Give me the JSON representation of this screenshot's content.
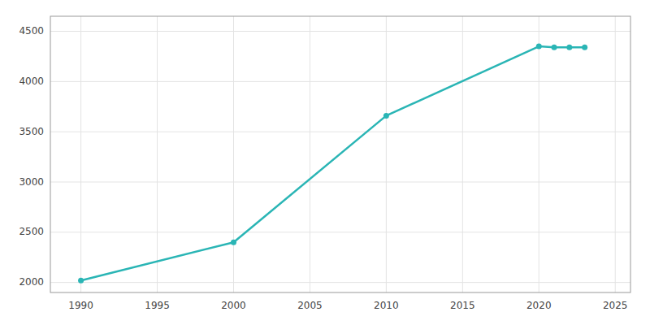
{
  "chart_data": {
    "type": "line",
    "x": [
      1990,
      2000,
      2010,
      2020,
      2021,
      2022,
      2023
    ],
    "values": [
      2020,
      2400,
      3660,
      4350,
      4340,
      4340,
      4340
    ],
    "color": "#2ab5b5",
    "marker": "circle",
    "xlim": [
      1988,
      2026
    ],
    "ylim": [
      1900,
      4650
    ],
    "xticks": [
      1990,
      1995,
      2000,
      2005,
      2010,
      2015,
      2020,
      2025
    ],
    "yticks": [
      2000,
      2500,
      3000,
      3500,
      4000,
      4500
    ],
    "grid": true
  }
}
